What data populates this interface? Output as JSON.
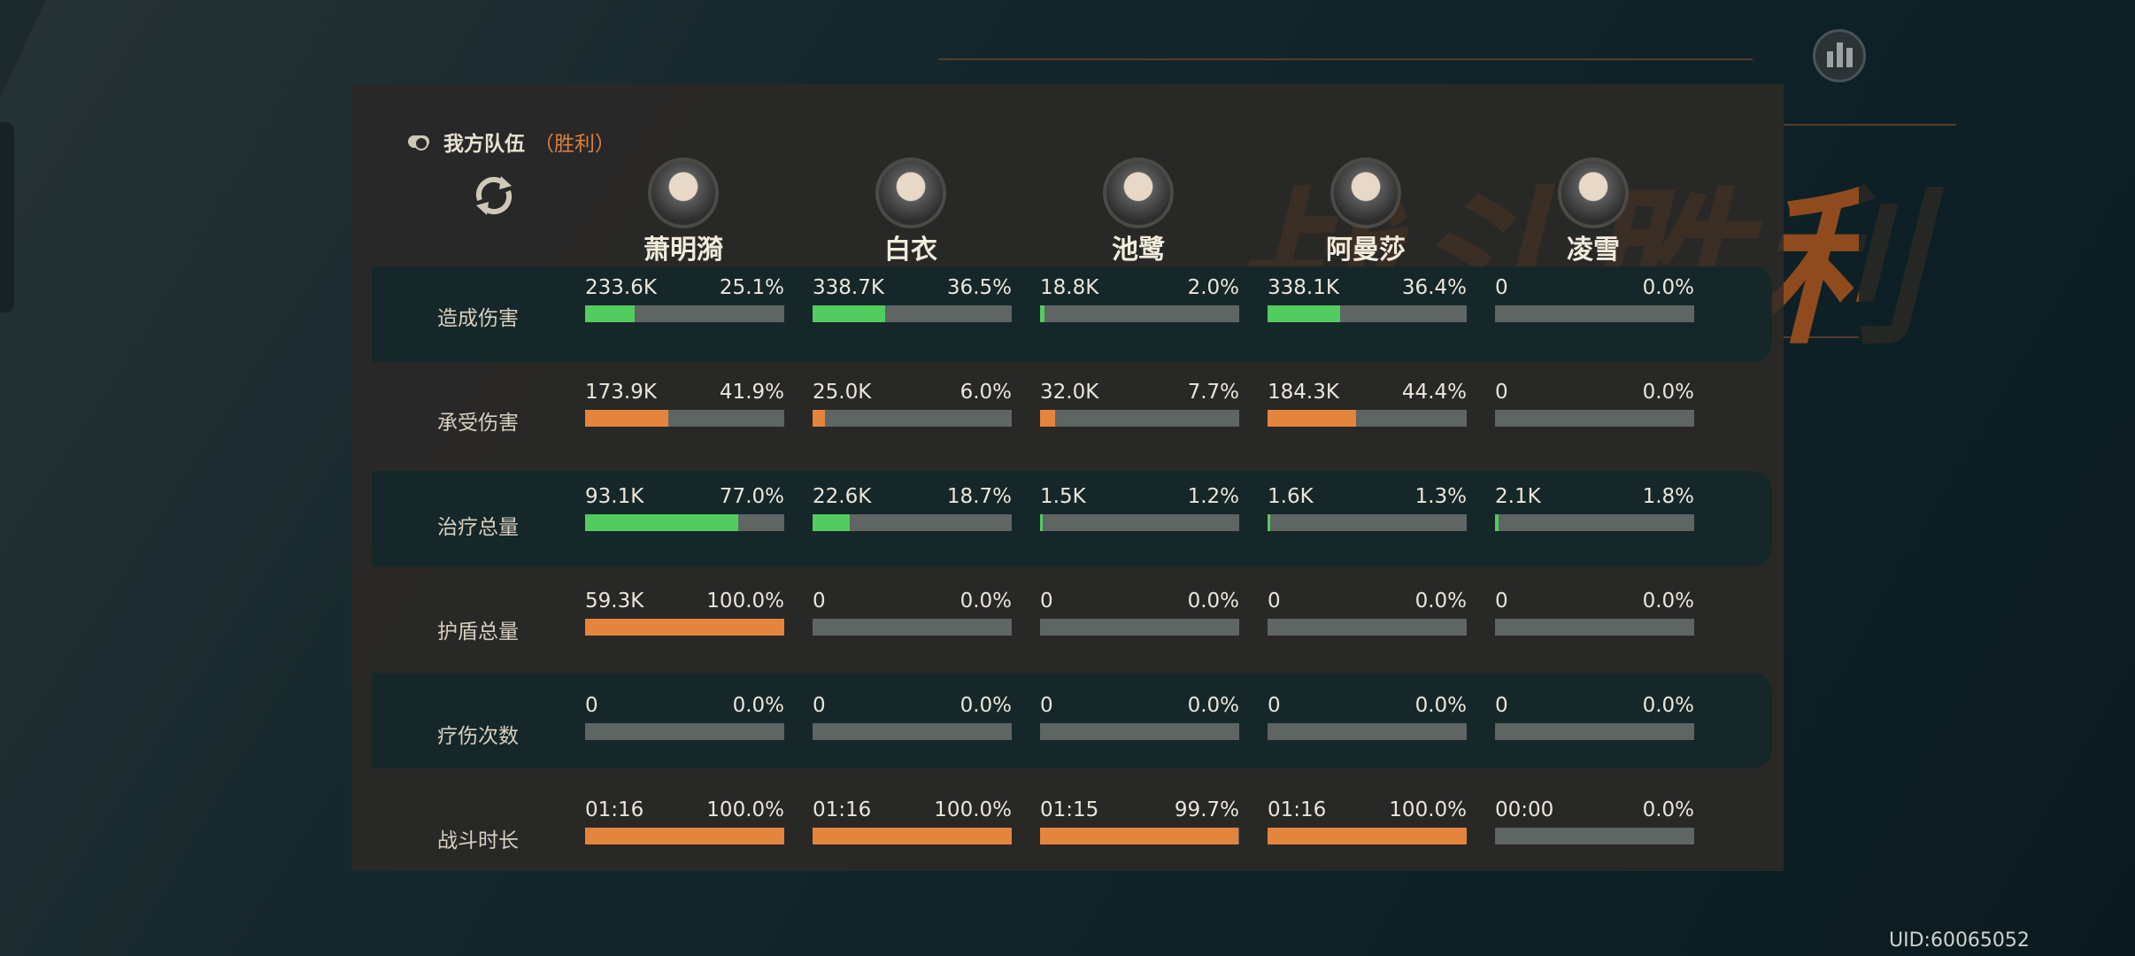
{
  "header": {
    "team_label": "我方队伍",
    "result_label": "（胜利）",
    "watermark": "战斗胜利",
    "uid": "UID:60065052"
  },
  "icons": {
    "toggle": "toggle-icon",
    "refresh": "refresh-icon",
    "stats": "bar-chart-icon"
  },
  "colors": {
    "green": "#52cc5e",
    "orange": "#e5843c",
    "track": "#5e6562",
    "accent": "#d9803e"
  },
  "heroes": [
    {
      "name": "萧明漪"
    },
    {
      "name": "白衣"
    },
    {
      "name": "池鹭"
    },
    {
      "name": "阿曼莎"
    },
    {
      "name": "凌雪"
    }
  ],
  "rows": [
    {
      "label": "造成伤害",
      "color": "green",
      "cells": [
        {
          "value": "233.6K",
          "percent": "25.1%",
          "fill": 25.1
        },
        {
          "value": "338.7K",
          "percent": "36.5%",
          "fill": 36.5
        },
        {
          "value": "18.8K",
          "percent": "2.0%",
          "fill": 2.0
        },
        {
          "value": "338.1K",
          "percent": "36.4%",
          "fill": 36.4
        },
        {
          "value": "0",
          "percent": "0.0%",
          "fill": 0
        }
      ]
    },
    {
      "label": "承受伤害",
      "color": "orange",
      "cells": [
        {
          "value": "173.9K",
          "percent": "41.9%",
          "fill": 41.9
        },
        {
          "value": "25.0K",
          "percent": "6.0%",
          "fill": 6.0
        },
        {
          "value": "32.0K",
          "percent": "7.7%",
          "fill": 7.7
        },
        {
          "value": "184.3K",
          "percent": "44.4%",
          "fill": 44.4
        },
        {
          "value": "0",
          "percent": "0.0%",
          "fill": 0
        }
      ]
    },
    {
      "label": "治疗总量",
      "color": "green",
      "cells": [
        {
          "value": "93.1K",
          "percent": "77.0%",
          "fill": 77.0
        },
        {
          "value": "22.6K",
          "percent": "18.7%",
          "fill": 18.7
        },
        {
          "value": "1.5K",
          "percent": "1.2%",
          "fill": 1.2
        },
        {
          "value": "1.6K",
          "percent": "1.3%",
          "fill": 1.3
        },
        {
          "value": "2.1K",
          "percent": "1.8%",
          "fill": 1.8
        }
      ]
    },
    {
      "label": "护盾总量",
      "color": "orange",
      "cells": [
        {
          "value": "59.3K",
          "percent": "100.0%",
          "fill": 100
        },
        {
          "value": "0",
          "percent": "0.0%",
          "fill": 0
        },
        {
          "value": "0",
          "percent": "0.0%",
          "fill": 0
        },
        {
          "value": "0",
          "percent": "0.0%",
          "fill": 0
        },
        {
          "value": "0",
          "percent": "0.0%",
          "fill": 0
        }
      ]
    },
    {
      "label": "疗伤次数",
      "color": "green",
      "cells": [
        {
          "value": "0",
          "percent": "0.0%",
          "fill": 0
        },
        {
          "value": "0",
          "percent": "0.0%",
          "fill": 0
        },
        {
          "value": "0",
          "percent": "0.0%",
          "fill": 0
        },
        {
          "value": "0",
          "percent": "0.0%",
          "fill": 0
        },
        {
          "value": "0",
          "percent": "0.0%",
          "fill": 0
        }
      ]
    },
    {
      "label": "战斗时长",
      "color": "orange",
      "cells": [
        {
          "value": "01:16",
          "percent": "100.0%",
          "fill": 100
        },
        {
          "value": "01:16",
          "percent": "100.0%",
          "fill": 100
        },
        {
          "value": "01:15",
          "percent": "99.7%",
          "fill": 99.7
        },
        {
          "value": "01:16",
          "percent": "100.0%",
          "fill": 100
        },
        {
          "value": "00:00",
          "percent": "0.0%",
          "fill": 0
        }
      ]
    }
  ]
}
